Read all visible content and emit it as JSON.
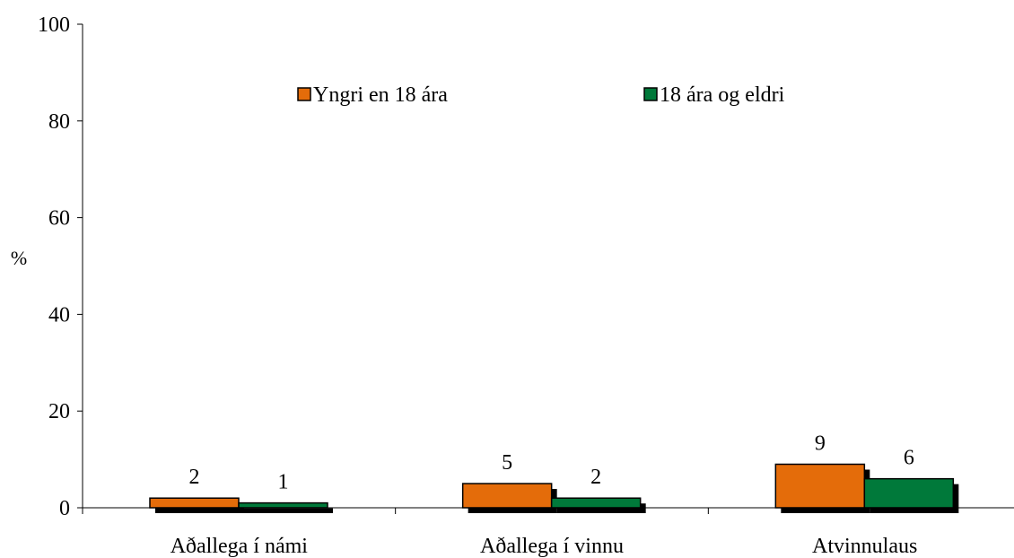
{
  "chart_data": {
    "type": "bar",
    "categories": [
      "Aðallega í námi",
      "Aðallega í vinnu",
      "Atvinnulaus"
    ],
    "series": [
      {
        "name": "Yngri en 18 ára",
        "values": [
          2,
          5,
          9
        ],
        "labels": [
          "2",
          "5",
          "9"
        ],
        "color": "#e46c0a"
      },
      {
        "name": "18 ára og eldri",
        "values": [
          1,
          2,
          6
        ],
        "labels": [
          "1",
          "2",
          "6"
        ],
        "color": "#00793a"
      }
    ],
    "ylabel": "%",
    "ylim": [
      0,
      100
    ],
    "yticks": [
      "0",
      "20",
      "40",
      "60",
      "80",
      "100"
    ],
    "grid": false,
    "legend_position": "top"
  }
}
